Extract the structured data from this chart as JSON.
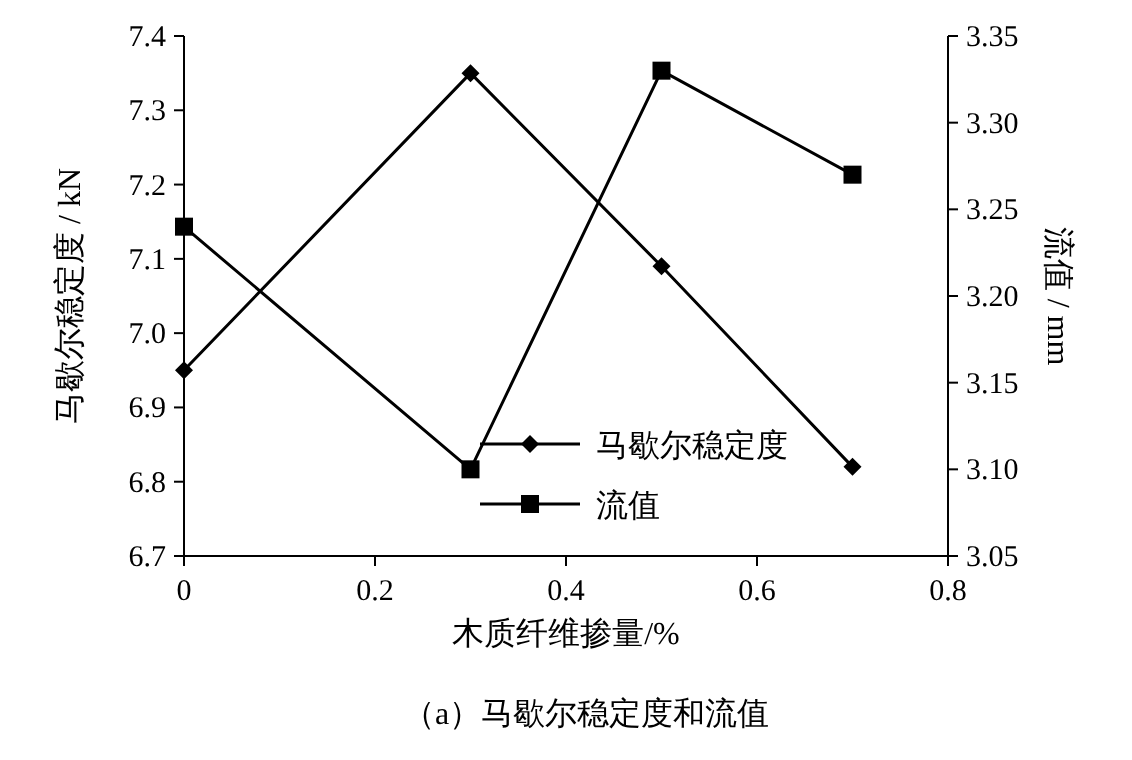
{
  "chart_data": {
    "type": "line",
    "xlabel": "木质纤维掺量/%",
    "ylabel": "马歇尔稳定度 / kN",
    "y2label": "流值 / mm",
    "x": [
      0,
      0.3,
      0.5,
      0.7
    ],
    "series": [
      {
        "name": "马歇尔稳定度",
        "color": "#000000",
        "values": [
          6.95,
          7.35,
          7.09,
          6.82
        ],
        "marker": "diamond"
      },
      {
        "name": "流值",
        "color": "#000000",
        "values": [
          3.24,
          3.1,
          3.33,
          3.27
        ],
        "marker": "square",
        "axis": "y2"
      }
    ],
    "xlim": [
      0,
      0.8
    ],
    "xticks": [
      0,
      0.2,
      0.4,
      0.6,
      0.8
    ],
    "ylim": [
      6.7,
      7.4
    ],
    "yticks": [
      6.7,
      6.8,
      6.9,
      {
        "value": 7,
        "label": "7.0"
      },
      7.1,
      7.2,
      7.3,
      7.4
    ],
    "y2lim": [
      3.05,
      3.35
    ],
    "y2ticks": [
      3.05,
      {
        "value": 3.1,
        "label": "3.10"
      },
      3.15,
      {
        "value": 3.2,
        "label": "3.20"
      },
      3.25,
      {
        "value": 3.3,
        "label": "3.30"
      },
      3.35
    ],
    "legend": "bottom",
    "line_style": "solid",
    "grid": false,
    "annotations": [
      "（a）马歇尔稳定度和流值"
    ]
  }
}
